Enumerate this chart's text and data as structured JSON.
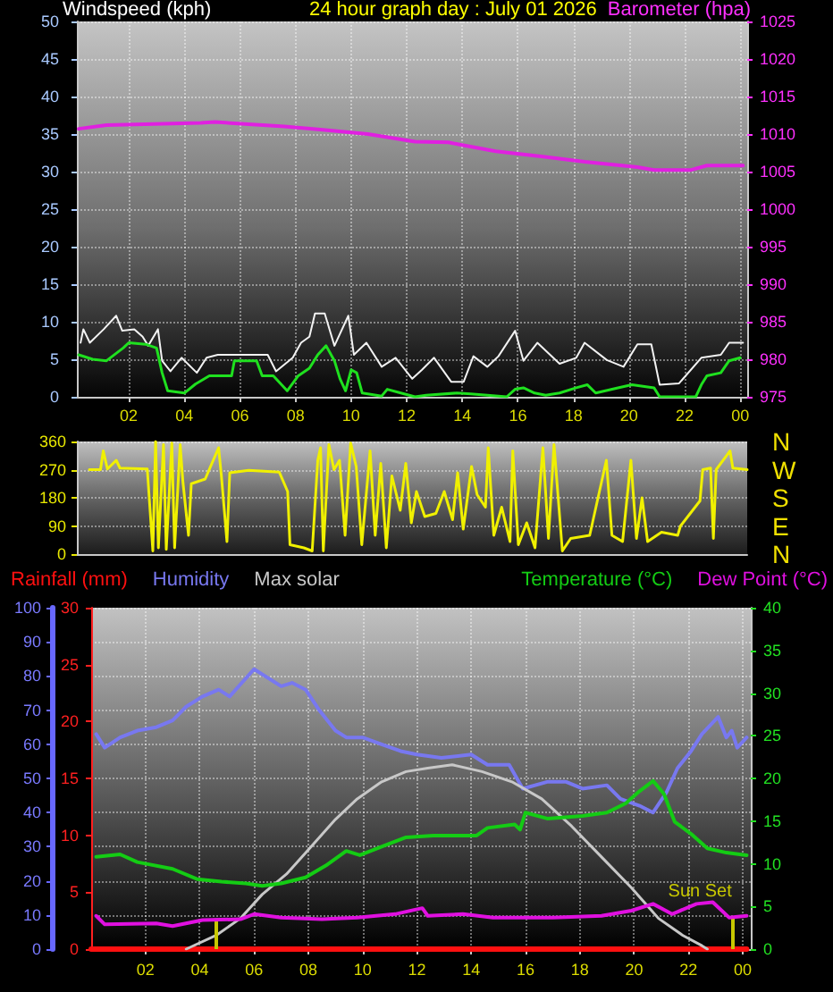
{
  "chart_data": [
    {
      "type": "line",
      "title": "24 hour graph day : July 01 2026",
      "ylabel": "Windspeed (kph)",
      "y2label": "Barometer (hpa)",
      "xlim": [
        "2026-07-01T00:08",
        "2026-07-02T00:15"
      ],
      "xticks": [
        {
          "value": "2026-07-01T02:00",
          "label": "02"
        },
        {
          "value": "2026-07-01T04:00",
          "label": "04"
        },
        {
          "value": "2026-07-01T06:00",
          "label": "06"
        },
        {
          "value": "2026-07-01T08:00",
          "label": "08"
        },
        {
          "value": "2026-07-01T10:00",
          "label": "10"
        },
        {
          "value": "2026-07-01T12:00",
          "label": "12"
        },
        {
          "value": "2026-07-01T14:00",
          "label": "14"
        },
        {
          "value": "2026-07-01T16:00",
          "label": "16"
        },
        {
          "value": "2026-07-01T18:00",
          "label": "18"
        },
        {
          "value": "2026-07-01T20:00",
          "label": "20"
        },
        {
          "value": "2026-07-01T22:00",
          "label": "22"
        },
        {
          "value": "2026-07-02T00:00",
          "label": "00"
        }
      ],
      "ylim": [
        0,
        50
      ],
      "yticks": [
        0,
        5,
        10,
        15,
        20,
        25,
        30,
        35,
        40,
        45,
        50
      ],
      "y2lim": [
        975,
        1025
      ],
      "y2ticks": [
        975,
        980,
        985,
        990,
        995,
        1000,
        1005,
        1010,
        1015,
        1020,
        1025
      ],
      "grid": true,
      "series": [
        {
          "color": "#f2f2f2",
          "x": [
            "2026-07-01T00:16",
            "2026-07-01T00:22",
            "2026-07-01T00:36",
            "2026-07-01T01:06",
            "2026-07-01T01:33",
            "2026-07-01T01:46",
            "2026-07-01T02:12",
            "2026-07-01T02:30",
            "2026-07-01T02:42",
            "2026-07-01T03:03",
            "2026-07-01T03:12",
            "2026-07-01T03:30",
            "2026-07-01T03:54",
            "2026-07-01T04:27",
            "2026-07-01T04:48",
            "2026-07-01T05:12",
            "2026-07-01T07:00",
            "2026-07-01T07:18",
            "2026-07-01T07:54",
            "2026-07-01T08:12",
            "2026-07-01T08:30",
            "2026-07-01T08:42",
            "2026-07-01T09:03",
            "2026-07-01T09:24",
            "2026-07-01T09:54",
            "2026-07-01T10:06",
            "2026-07-01T10:33",
            "2026-07-01T11:06",
            "2026-07-01T11:36",
            "2026-07-01T12:12",
            "2026-07-01T12:33",
            "2026-07-01T12:59",
            "2026-07-01T13:36",
            "2026-07-01T14:03",
            "2026-07-01T14:24",
            "2026-07-01T14:54",
            "2026-07-01T15:18",
            "2026-07-01T15:54",
            "2026-07-01T16:12",
            "2026-07-01T16:42",
            "2026-07-01T17:30",
            "2026-07-01T18:06",
            "2026-07-01T18:24",
            "2026-07-01T19:12",
            "2026-07-01T19:48",
            "2026-07-01T20:18",
            "2026-07-01T20:48",
            "2026-07-01T21:06",
            "2026-07-01T21:48",
            "2026-07-01T22:36",
            "2026-07-01T23:18",
            "2026-07-01T23:36",
            "2026-07-02T00:06"
          ],
          "values": [
            7.2,
            9,
            7.2,
            9,
            10.8,
            8.8,
            9,
            8,
            6.8,
            9,
            4.8,
            3.4,
            5.2,
            3.2,
            5.2,
            5.6,
            5.6,
            3.4,
            5.2,
            7.2,
            8,
            11.1,
            11.1,
            6.8,
            10.8,
            5.6,
            7.2,
            4,
            5.2,
            2.4,
            3.6,
            5.2,
            2,
            2,
            5.4,
            4,
            5.4,
            8.8,
            4.8,
            7.2,
            4.4,
            5.2,
            7.2,
            4.9,
            4,
            7,
            7,
            1.6,
            1.8,
            5.2,
            5.6,
            7.2,
            7.2
          ]
        },
        {
          "color": "#1fe01f",
          "x": [
            "2026-07-01T00:12",
            "2026-07-01T00:42",
            "2026-07-01T01:12",
            "2026-07-01T01:48",
            "2026-07-01T02:00",
            "2026-07-01T02:36",
            "2026-07-01T03:00",
            "2026-07-01T03:12",
            "2026-07-01T03:24",
            "2026-07-01T04:00",
            "2026-07-01T04:24",
            "2026-07-01T04:54",
            "2026-07-01T05:42",
            "2026-07-01T05:48",
            "2026-07-01T06:36",
            "2026-07-01T06:48",
            "2026-07-01T07:12",
            "2026-07-01T07:42",
            "2026-07-01T08:06",
            "2026-07-01T08:30",
            "2026-07-01T08:48",
            "2026-07-01T09:06",
            "2026-07-01T09:24",
            "2026-07-01T09:36",
            "2026-07-01T09:48",
            "2026-07-01T10:00",
            "2026-07-01T10:12",
            "2026-07-01T10:24",
            "2026-07-01T11:06",
            "2026-07-01T11:18",
            "2026-07-01T11:42",
            "2026-07-01T12:18",
            "2026-07-01T12:42",
            "2026-07-01T13:48",
            "2026-07-01T14:18",
            "2026-07-01T15:36",
            "2026-07-01T15:54",
            "2026-07-01T16:12",
            "2026-07-01T16:36",
            "2026-07-01T17:00",
            "2026-07-01T17:30",
            "2026-07-01T18:06",
            "2026-07-01T18:30",
            "2026-07-01T18:48",
            "2026-07-01T19:36",
            "2026-07-01T20:06",
            "2026-07-01T20:54",
            "2026-07-01T21:06",
            "2026-07-01T22:24",
            "2026-07-01T22:36",
            "2026-07-01T22:48",
            "2026-07-01T23:18",
            "2026-07-01T23:36",
            "2026-07-02T00:00"
          ],
          "values": [
            5.6,
            5,
            4.8,
            6.5,
            7.2,
            7,
            6.5,
            3.2,
            0.8,
            0.5,
            1.7,
            2.8,
            2.8,
            4.8,
            4.8,
            2.8,
            2.8,
            0.8,
            2.8,
            3.8,
            5.6,
            6.8,
            4.8,
            2.4,
            0.8,
            3.6,
            3.2,
            0.5,
            0.1,
            1,
            0.6,
            0,
            0.2,
            0.5,
            0.4,
            0,
            1,
            1.2,
            0.5,
            0.2,
            0.5,
            1.2,
            1.6,
            0.5,
            1.2,
            1.6,
            1.2,
            0,
            0,
            1.6,
            2.8,
            3.2,
            4.8,
            5.2
          ]
        },
        {
          "color": "#e020e0",
          "axis": "y2",
          "x": [
            "2026-07-01T00:12",
            "2026-07-01T01:12",
            "2026-07-01T04:36",
            "2026-07-01T05:06",
            "2026-07-01T07:36",
            "2026-07-01T08:54",
            "2026-07-01T10:36",
            "2026-07-01T12:18",
            "2026-07-01T13:30",
            "2026-07-01T13:54",
            "2026-07-01T15:12",
            "2026-07-01T16:54",
            "2026-07-01T18:24",
            "2026-07-01T20:18",
            "2026-07-01T20:54",
            "2026-07-01T22:12",
            "2026-07-01T22:48",
            "2026-07-02T00:06"
          ],
          "values": [
            1010.7,
            1011.2,
            1011.5,
            1011.6,
            1011.0,
            1010.6,
            1010.0,
            1009.0,
            1008.9,
            1008.6,
            1007.7,
            1007.0,
            1006.3,
            1005.6,
            1005.2,
            1005.2,
            1005.8,
            1005.8
          ]
        }
      ]
    },
    {
      "type": "line",
      "xlim": [
        "2026-07-01T00:08",
        "2026-07-02T00:15"
      ],
      "ylim": [
        0,
        360
      ],
      "yticks": [
        0,
        90,
        180,
        270,
        360
      ],
      "y2_categories": [
        "N",
        "W",
        "S",
        "E",
        "N"
      ],
      "tick_labels": "y",
      "grid": "y",
      "series": [
        {
          "color": "#f0f000",
          "x": [
            "2026-07-01T00:35",
            "2026-07-01T00:59",
            "2026-07-01T01:05",
            "2026-07-01T01:14",
            "2026-07-01T01:33",
            "2026-07-01T01:41",
            "2026-07-01T02:40",
            "2026-07-01T02:52",
            "2026-07-01T02:58",
            "2026-07-01T03:04",
            "2026-07-01T03:15",
            "2026-07-01T03:21",
            "2026-07-01T03:33",
            "2026-07-01T03:39",
            "2026-07-01T03:51",
            "2026-07-01T03:57",
            "2026-07-01T04:09",
            "2026-07-01T04:15",
            "2026-07-01T04:45",
            "2026-07-01T05:14",
            "2026-07-01T05:20",
            "2026-07-01T05:32",
            "2026-07-01T05:38",
            "2026-07-01T06:19",
            "2026-07-01T07:25",
            "2026-07-01T07:43",
            "2026-07-01T07:48",
            "2026-07-01T08:18",
            "2026-07-01T08:36",
            "2026-07-01T08:48",
            "2026-07-01T08:54",
            "2026-07-01T09:00",
            "2026-07-01T09:12",
            "2026-07-01T09:23",
            "2026-07-01T09:35",
            "2026-07-01T09:47",
            "2026-07-01T09:59",
            "2026-07-01T10:11",
            "2026-07-01T10:23",
            "2026-07-01T10:41",
            "2026-07-01T10:52",
            "2026-07-01T11:04",
            "2026-07-01T11:16",
            "2026-07-01T11:28",
            "2026-07-01T11:46",
            "2026-07-01T11:58",
            "2026-07-01T12:10",
            "2026-07-01T12:21",
            "2026-07-01T12:39",
            "2026-07-01T13:03",
            "2026-07-01T13:21",
            "2026-07-01T13:39",
            "2026-07-01T13:50",
            "2026-07-01T14:02",
            "2026-07-01T14:20",
            "2026-07-01T14:32",
            "2026-07-01T14:50",
            "2026-07-01T14:56",
            "2026-07-01T15:08",
            "2026-07-01T15:25",
            "2026-07-01T15:43",
            "2026-07-01T15:49",
            "2026-07-01T16:01",
            "2026-07-01T16:19",
            "2026-07-01T16:37",
            "2026-07-01T16:54",
            "2026-07-01T17:06",
            "2026-07-01T17:18",
            "2026-07-01T17:36",
            "2026-07-01T17:54",
            "2026-07-01T18:35",
            "2026-07-01T19:11",
            "2026-07-01T19:23",
            "2026-07-01T19:46",
            "2026-07-01T20:04",
            "2026-07-01T20:16",
            "2026-07-01T20:28",
            "2026-07-01T20:40",
            "2026-07-01T21:10",
            "2026-07-01T21:45",
            "2026-07-01T21:51",
            "2026-07-01T22:33",
            "2026-07-01T22:39",
            "2026-07-01T22:56",
            "2026-07-01T23:02",
            "2026-07-01T23:08",
            "2026-07-01T23:38",
            "2026-07-01T23:44",
            "2026-07-02T00:15"
          ],
          "values": [
            270,
            270,
            330,
            272,
            300,
            275,
            272,
            10,
            360,
            20,
            350,
            15,
            355,
            20,
            350,
            230,
            60,
            225,
            240,
            340,
            250,
            40,
            260,
            268,
            262,
            200,
            30,
            20,
            10,
            300,
            340,
            10,
            350,
            270,
            300,
            60,
            355,
            280,
            30,
            330,
            60,
            290,
            20,
            250,
            140,
            290,
            100,
            200,
            120,
            130,
            200,
            110,
            260,
            80,
            280,
            190,
            150,
            340,
            60,
            150,
            40,
            330,
            30,
            100,
            20,
            340,
            50,
            350,
            10,
            50,
            60,
            300,
            60,
            40,
            300,
            50,
            180,
            40,
            70,
            60,
            90,
            170,
            270,
            275,
            50,
            270,
            330,
            275,
            270
          ]
        }
      ]
    },
    {
      "type": "line",
      "xlim": [
        "2026-07-01T00:00",
        "2026-07-02T00:18"
      ],
      "xticks": [
        {
          "value": "2026-07-01T02:00",
          "label": "02"
        },
        {
          "value": "2026-07-01T04:00",
          "label": "04"
        },
        {
          "value": "2026-07-01T06:00",
          "label": "06"
        },
        {
          "value": "2026-07-01T08:00",
          "label": "08"
        },
        {
          "value": "2026-07-01T10:00",
          "label": "10"
        },
        {
          "value": "2026-07-01T12:00",
          "label": "12"
        },
        {
          "value": "2026-07-01T14:00",
          "label": "14"
        },
        {
          "value": "2026-07-01T16:00",
          "label": "16"
        },
        {
          "value": "2026-07-01T18:00",
          "label": "18"
        },
        {
          "value": "2026-07-01T20:00",
          "label": "20"
        },
        {
          "value": "2026-07-01T22:00",
          "label": "22"
        },
        {
          "value": "2026-07-02T00:00",
          "label": "00"
        }
      ],
      "ylim": [
        0,
        100
      ],
      "yticks": [
        0,
        10,
        20,
        30,
        40,
        50,
        60,
        70,
        80,
        90,
        100
      ],
      "y2lim": [
        0,
        40
      ],
      "y2ticks": [
        0,
        5,
        10,
        15,
        20,
        25,
        30,
        35,
        40
      ],
      "y3lim": [
        0,
        30
      ],
      "y3ticks": [
        0,
        5,
        10,
        15,
        20,
        25,
        30
      ],
      "grid": true,
      "legend": "top",
      "ref_lines": [
        {
          "axis": "x",
          "value": "2026-07-01T04:36",
          "color": "#c8c800"
        },
        {
          "axis": "x",
          "value": "2026-07-01T23:36",
          "label": "Sun Set",
          "color": "#c8c800"
        }
      ],
      "series": [
        {
          "name": "Rainfall (mm)",
          "color": "#ff1010",
          "axis": "y3",
          "x": [
            "2026-07-01T00:00",
            "2026-07-02T00:09"
          ],
          "values": [
            0,
            0
          ]
        },
        {
          "name": "Humidity",
          "color": "#7878f0",
          "x": [
            "2026-07-01T00:11",
            "2026-07-01T00:30",
            "2026-07-01T01:04",
            "2026-07-01T01:42",
            "2026-07-01T02:24",
            "2026-07-01T03:00",
            "2026-07-01T03:30",
            "2026-07-01T04:06",
            "2026-07-01T04:42",
            "2026-07-01T05:06",
            "2026-07-01T05:33",
            "2026-07-01T06:00",
            "2026-07-01T06:24",
            "2026-07-01T07:00",
            "2026-07-01T07:24",
            "2026-07-01T07:54",
            "2026-07-01T08:24",
            "2026-07-01T09:00",
            "2026-07-01T09:24",
            "2026-07-01T10:00",
            "2026-07-01T10:42",
            "2026-07-01T11:24",
            "2026-07-01T12:00",
            "2026-07-01T12:54",
            "2026-07-01T14:00",
            "2026-07-01T14:36",
            "2026-07-01T15:24",
            "2026-07-01T15:54",
            "2026-07-01T16:48",
            "2026-07-01T17:30",
            "2026-07-01T18:06",
            "2026-07-01T19:00",
            "2026-07-01T19:30",
            "2026-07-01T20:12",
            "2026-07-01T20:42",
            "2026-07-01T21:12",
            "2026-07-01T21:36",
            "2026-07-01T22:06",
            "2026-07-01T22:30",
            "2026-07-01T23:06",
            "2026-07-01T23:24",
            "2026-07-01T23:36",
            "2026-07-01T23:48",
            "2026-07-02T00:09"
          ],
          "values": [
            63,
            59,
            62,
            64,
            65,
            67,
            71,
            74,
            76,
            74,
            78,
            82,
            80,
            77,
            78,
            76,
            70,
            64,
            62,
            62,
            60,
            58,
            57,
            56,
            57,
            54,
            54,
            47,
            49,
            49,
            47,
            48,
            44,
            42,
            40,
            46,
            53,
            58,
            63,
            68,
            62,
            64,
            59,
            62
          ]
        },
        {
          "name": "Max solar",
          "color": "#c8c8c8",
          "x": [
            "2026-07-01T03:30",
            "2026-07-01T04:36",
            "2026-07-01T05:30",
            "2026-07-01T06:18",
            "2026-07-01T07:12",
            "2026-07-01T08:06",
            "2026-07-01T09:00",
            "2026-07-01T09:48",
            "2026-07-01T10:42",
            "2026-07-01T11:36",
            "2026-07-01T12:24",
            "2026-07-01T13:18",
            "2026-07-01T14:24",
            "2026-07-01T15:30",
            "2026-07-01T16:36",
            "2026-07-01T17:42",
            "2026-07-01T18:48",
            "2026-07-01T19:54",
            "2026-07-01T20:54",
            "2026-07-01T21:48",
            "2026-07-01T22:30",
            "2026-07-01T22:42"
          ],
          "values": [
            0,
            4,
            9,
            16,
            22,
            30,
            38,
            44,
            49,
            52,
            53,
            54,
            52,
            49,
            44,
            36,
            27,
            18,
            9,
            4,
            1,
            0
          ]
        },
        {
          "name": "Temperature (°C)",
          "color": "#14cc14",
          "axis": "y2",
          "x": [
            "2026-07-01T00:11",
            "2026-07-01T01:04",
            "2026-07-01T01:42",
            "2026-07-01T03:00",
            "2026-07-01T03:54",
            "2026-07-01T04:48",
            "2026-07-01T05:42",
            "2026-07-01T06:18",
            "2026-07-01T07:00",
            "2026-07-01T07:54",
            "2026-07-01T08:42",
            "2026-07-01T09:24",
            "2026-07-01T09:54",
            "2026-07-01T10:42",
            "2026-07-01T11:36",
            "2026-07-01T12:36",
            "2026-07-01T14:12",
            "2026-07-01T14:36",
            "2026-07-01T15:36",
            "2026-07-01T15:48",
            "2026-07-01T16:00",
            "2026-07-01T16:48",
            "2026-07-01T18:06",
            "2026-07-01T19:00",
            "2026-07-01T19:42",
            "2026-07-01T20:12",
            "2026-07-01T20:42",
            "2026-07-01T21:06",
            "2026-07-01T21:30",
            "2026-07-01T22:06",
            "2026-07-01T22:42",
            "2026-07-01T23:24",
            "2026-07-02T00:09"
          ],
          "values": [
            10.8,
            11.1,
            10.2,
            9.4,
            8.2,
            7.9,
            7.7,
            7.4,
            7.7,
            8.4,
            9.9,
            11.5,
            11.0,
            12.0,
            13.1,
            13.3,
            13.3,
            14.2,
            14.6,
            14.0,
            16.0,
            15.3,
            15.6,
            16.0,
            17.1,
            18.5,
            19.7,
            18.2,
            14.9,
            13.5,
            11.8,
            11.3,
            11.0
          ]
        },
        {
          "name": "Dew Point (°C)",
          "color": "#e010e0",
          "axis": "y2",
          "x": [
            "2026-07-01T00:11",
            "2026-07-01T00:30",
            "2026-07-01T02:24",
            "2026-07-01T03:00",
            "2026-07-01T04:06",
            "2026-07-01T05:30",
            "2026-07-01T06:00",
            "2026-07-01T07:00",
            "2026-07-01T08:30",
            "2026-07-01T09:48",
            "2026-07-01T11:12",
            "2026-07-01T12:12",
            "2026-07-01T12:24",
            "2026-07-01T13:42",
            "2026-07-01T14:48",
            "2026-07-01T17:00",
            "2026-07-01T18:48",
            "2026-07-01T19:54",
            "2026-07-01T20:42",
            "2026-07-01T21:24",
            "2026-07-01T22:18",
            "2026-07-01T22:54",
            "2026-07-01T23:30",
            "2026-07-02T00:09"
          ],
          "values": [
            3.9,
            2.9,
            3.0,
            2.7,
            3.4,
            3.5,
            4.1,
            3.7,
            3.5,
            3.7,
            4.1,
            4.8,
            3.9,
            4.1,
            3.7,
            3.7,
            3.9,
            4.5,
            5.3,
            4.1,
            5.3,
            5.5,
            3.7,
            3.9
          ]
        }
      ]
    }
  ]
}
